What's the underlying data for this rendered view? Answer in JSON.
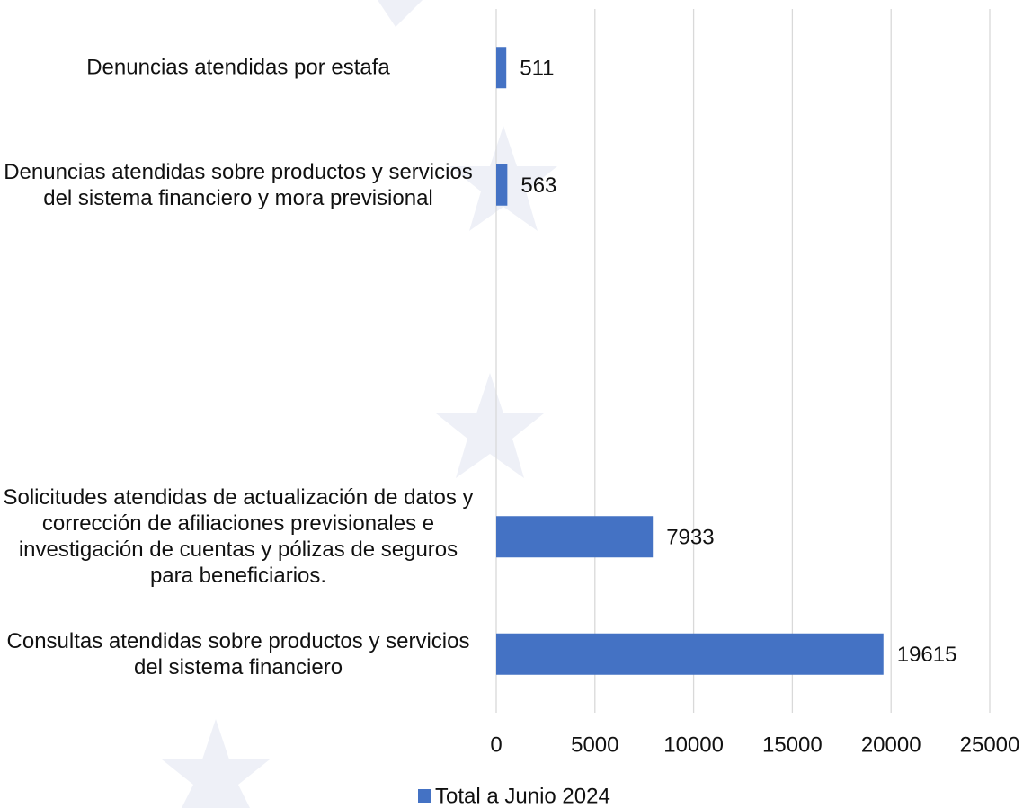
{
  "chart_data": {
    "type": "barh",
    "categories": [
      "Denuncias atendidas por estafa",
      "Denuncias atendidas sobre productos y servicios del sistema financiero y mora previsional",
      null,
      null,
      "Solicitudes atendidas de actualización de datos y corrección de afiliaciones previsionales e investigación de cuentas y pólizas de seguros para beneficiarios.",
      "Consultas atendidas sobre productos y servicios del sistema financiero"
    ],
    "series": [
      {
        "name": "Total a Junio 2024",
        "color": "#4472c4",
        "values": [
          511,
          563,
          null,
          null,
          7933,
          19615
        ]
      }
    ],
    "xlim": [
      0,
      25000
    ],
    "xticks": [
      0,
      5000,
      10000,
      15000,
      20000,
      25000
    ],
    "grid": true,
    "legend": "bottom"
  }
}
